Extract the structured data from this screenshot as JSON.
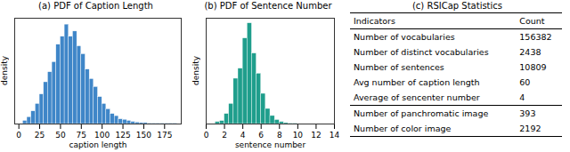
{
  "chart_data": [
    {
      "type": "histogram",
      "title": "(a) PDF of Caption Length",
      "xlabel": "caption length",
      "ylabel": "density",
      "bins": [
        5,
        10,
        15,
        20,
        25,
        30,
        35,
        40,
        45,
        50,
        55,
        60,
        65,
        70,
        75,
        80,
        85,
        90,
        95,
        100,
        105,
        110,
        115,
        120,
        125,
        130,
        135,
        140,
        145,
        150,
        155,
        160,
        165,
        170,
        175,
        180,
        185,
        190
      ],
      "values": [
        0.0006,
        0.0013,
        0.0024,
        0.0038,
        0.0056,
        0.0079,
        0.0098,
        0.0117,
        0.015,
        0.0165,
        0.0188,
        0.0165,
        0.0175,
        0.0147,
        0.0132,
        0.0103,
        0.0085,
        0.007,
        0.0051,
        0.0038,
        0.0028,
        0.0019,
        0.0015,
        0.0009,
        0.0008,
        0.0006,
        0.0004,
        0.0003,
        0.0002,
        0.0002,
        0.0001,
        0.0001,
        0.0001,
        0.0001,
        0.0001,
        0.0001,
        0.0001
      ],
      "color": "#3f86c8",
      "xlim": [
        -5,
        195
      ],
      "xticks": [
        0,
        25,
        50,
        75,
        100,
        125,
        150,
        175
      ],
      "ylim": [
        0,
        0.02
      ],
      "tick_labels": "x",
      "grid": false
    },
    {
      "type": "histogram",
      "title": "(b) PDF of Sentence Number",
      "xlabel": "sentence number",
      "ylabel": "density",
      "bins": [
        1,
        1.5,
        2,
        2.5,
        3,
        3.5,
        4,
        4.5,
        5,
        5.5,
        6,
        6.5,
        7,
        7.5,
        8,
        8.5,
        9,
        9.5,
        10
      ],
      "values": [
        0.008,
        0.012,
        0.04,
        0.08,
        0.18,
        0.22,
        0.34,
        0.4,
        0.28,
        0.2,
        0.12,
        0.06,
        0.032,
        0.016,
        0.008,
        0.004,
        0.002,
        0.002
      ],
      "color": "#1f9e8c",
      "xlim": [
        0,
        14
      ],
      "xticks": [
        0,
        2,
        4,
        6,
        8,
        10,
        12,
        14
      ],
      "ylim": [
        0,
        0.42
      ],
      "tick_labels": "x",
      "grid": false
    }
  ],
  "table": {
    "title": "(c) RSICap Statistics",
    "header": [
      "Indicators",
      "Count"
    ],
    "row_groups": [
      [
        [
          "Number of vocabularies",
          156382
        ],
        [
          "Number of distinct vocabularies",
          2438
        ],
        [
          "Number of sentences",
          10809
        ],
        [
          "Avg number of caption length",
          60
        ],
        [
          "Average of sencenter number",
          4
        ]
      ],
      [
        [
          "Number of panchromatic image",
          393
        ],
        [
          "Number of color image",
          2192
        ]
      ]
    ]
  }
}
